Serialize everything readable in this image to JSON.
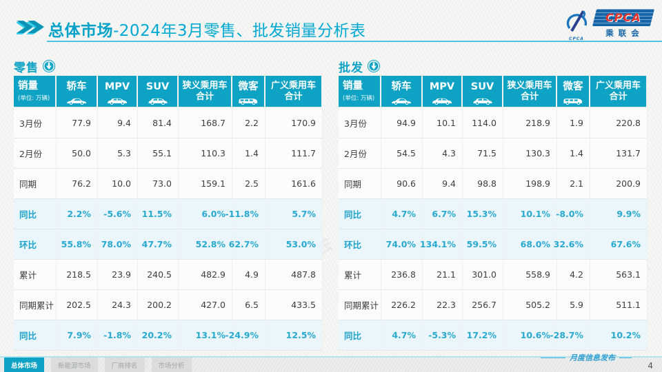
{
  "page": {
    "title_bold": "总体市场",
    "title_rest": "-2024年3月零售、批发销量分析表",
    "logo": {
      "acronym": "CPCA",
      "name_cn": "乘联会",
      "swoosh_caption": "CPCA"
    },
    "watermark": "CPCA 乘联会",
    "footer": {
      "tabs": [
        {
          "label": "总体市场",
          "active": true
        },
        {
          "label": "新能源市场",
          "active": false
        },
        {
          "label": "厂商排名",
          "active": false
        },
        {
          "label": "市场分析",
          "active": false
        }
      ],
      "note": "月度信息发布",
      "page_number": "4"
    },
    "colors": {
      "accent_teal": "#0EA2C4",
      "title_cyan": "#00A9D4",
      "highlight_text": "#28A9D2",
      "highlight_bg": "#EAF6FB",
      "logo_red": "#E8332A",
      "logo_blue": "#1565A8"
    }
  },
  "tables": [
    {
      "section_title": "零售",
      "first_col": {
        "title": "销量",
        "subtitle": "(单位: 万辆)"
      },
      "columns": [
        {
          "label": "轿车",
          "icon": "sedan-icon"
        },
        {
          "label": "MPV",
          "icon": "mpv-icon"
        },
        {
          "label": "SUV",
          "icon": "suv-icon"
        },
        {
          "label": "狭义乘用车",
          "label2": "合计"
        },
        {
          "label": "微客",
          "icon": "van-icon"
        },
        {
          "label": "广义乘用车",
          "label2": "合计"
        }
      ],
      "rows": [
        {
          "label": "3月份",
          "highlight": false,
          "values": [
            "77.9",
            "9.4",
            "81.4",
            "168.7",
            "2.2",
            "170.9"
          ]
        },
        {
          "label": "2月份",
          "highlight": false,
          "values": [
            "50.0",
            "5.3",
            "55.1",
            "110.3",
            "1.4",
            "111.7"
          ]
        },
        {
          "label": "同期",
          "highlight": false,
          "values": [
            "76.2",
            "10.0",
            "73.0",
            "159.1",
            "2.5",
            "161.6"
          ]
        },
        {
          "label": "同比",
          "highlight": true,
          "values": [
            "2.2%",
            "-5.6%",
            "11.5%",
            "6.0%",
            "-11.8%",
            "5.7%"
          ]
        },
        {
          "label": "环比",
          "highlight": true,
          "values": [
            "55.8%",
            "78.0%",
            "47.7%",
            "52.8%",
            "62.7%",
            "53.0%"
          ]
        },
        {
          "label": "累计",
          "highlight": false,
          "values": [
            "218.5",
            "23.9",
            "240.5",
            "482.9",
            "4.9",
            "487.8"
          ]
        },
        {
          "label": "同期累计",
          "highlight": false,
          "values": [
            "202.5",
            "24.3",
            "200.2",
            "427.0",
            "6.5",
            "433.5"
          ]
        },
        {
          "label": "同比",
          "highlight": true,
          "values": [
            "7.9%",
            "-1.8%",
            "20.2%",
            "13.1%",
            "-24.9%",
            "12.5%"
          ]
        }
      ]
    },
    {
      "section_title": "批发",
      "first_col": {
        "title": "销量",
        "subtitle": "(单位: 万辆)"
      },
      "columns": [
        {
          "label": "轿车",
          "icon": "sedan-icon"
        },
        {
          "label": "MPV",
          "icon": "mpv-icon"
        },
        {
          "label": "SUV",
          "icon": "suv-icon"
        },
        {
          "label": "狭义乘用车",
          "label2": "合计"
        },
        {
          "label": "微客",
          "icon": "van-icon"
        },
        {
          "label": "广义乘用车",
          "label2": "合计"
        }
      ],
      "rows": [
        {
          "label": "3月份",
          "highlight": false,
          "values": [
            "94.9",
            "10.1",
            "114.0",
            "218.9",
            "1.9",
            "220.8"
          ]
        },
        {
          "label": "2月份",
          "highlight": false,
          "values": [
            "54.5",
            "4.3",
            "71.5",
            "130.3",
            "1.4",
            "131.7"
          ]
        },
        {
          "label": "同期",
          "highlight": false,
          "values": [
            "90.6",
            "9.4",
            "98.8",
            "198.9",
            "2.1",
            "200.9"
          ]
        },
        {
          "label": "同比",
          "highlight": true,
          "values": [
            "4.7%",
            "6.7%",
            "15.3%",
            "10.1%",
            "-8.0%",
            "9.9%"
          ]
        },
        {
          "label": "环比",
          "highlight": true,
          "values": [
            "74.0%",
            "134.1%",
            "59.5%",
            "68.0%",
            "32.6%",
            "67.6%"
          ]
        },
        {
          "label": "累计",
          "highlight": false,
          "values": [
            "236.8",
            "21.1",
            "301.0",
            "558.9",
            "4.2",
            "563.1"
          ]
        },
        {
          "label": "同期累计",
          "highlight": false,
          "values": [
            "226.2",
            "22.3",
            "256.7",
            "505.2",
            "5.9",
            "511.1"
          ]
        },
        {
          "label": "同比",
          "highlight": true,
          "values": [
            "4.7%",
            "-5.3%",
            "17.2%",
            "10.6%",
            "-28.7%",
            "10.2%"
          ]
        }
      ]
    }
  ]
}
